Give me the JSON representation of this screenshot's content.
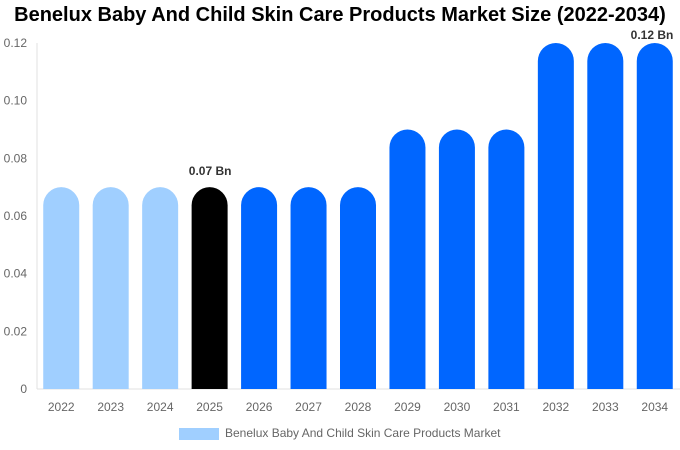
{
  "chart_data": {
    "type": "bar",
    "title": "Benelux Baby And Child Skin Care Products Market Size (2022-2034)",
    "categories": [
      "2022",
      "2023",
      "2024",
      "2025",
      "2026",
      "2027",
      "2028",
      "2029",
      "2030",
      "2031",
      "2032",
      "2033",
      "2034"
    ],
    "series": [
      {
        "name": "Benelux Baby And Child Skin Care Products Market",
        "values": [
          0.07,
          0.07,
          0.07,
          0.07,
          0.07,
          0.07,
          0.07,
          0.09,
          0.09,
          0.09,
          0.12,
          0.12,
          0.12
        ]
      }
    ],
    "bar_colors": [
      "#a0cfff",
      "#a0cfff",
      "#a0cfff",
      "#000000",
      "#0066ff",
      "#0066ff",
      "#0066ff",
      "#0066ff",
      "#0066ff",
      "#0066ff",
      "#0066ff",
      "#0066ff",
      "#0066ff"
    ],
    "data_labels": [
      {
        "category": "2025",
        "text": "0.07 Bn"
      },
      {
        "category": "2034",
        "text": "0.12 Bn"
      }
    ],
    "ylim": [
      0,
      0.12
    ],
    "yticks": [
      "0",
      "0.02",
      "0.04",
      "0.06",
      "0.08",
      "0.10",
      "0.12"
    ],
    "xlabel": "",
    "ylabel": "",
    "legend": {
      "position": "bottom",
      "color": "#a0cfff"
    },
    "grid": false
  }
}
